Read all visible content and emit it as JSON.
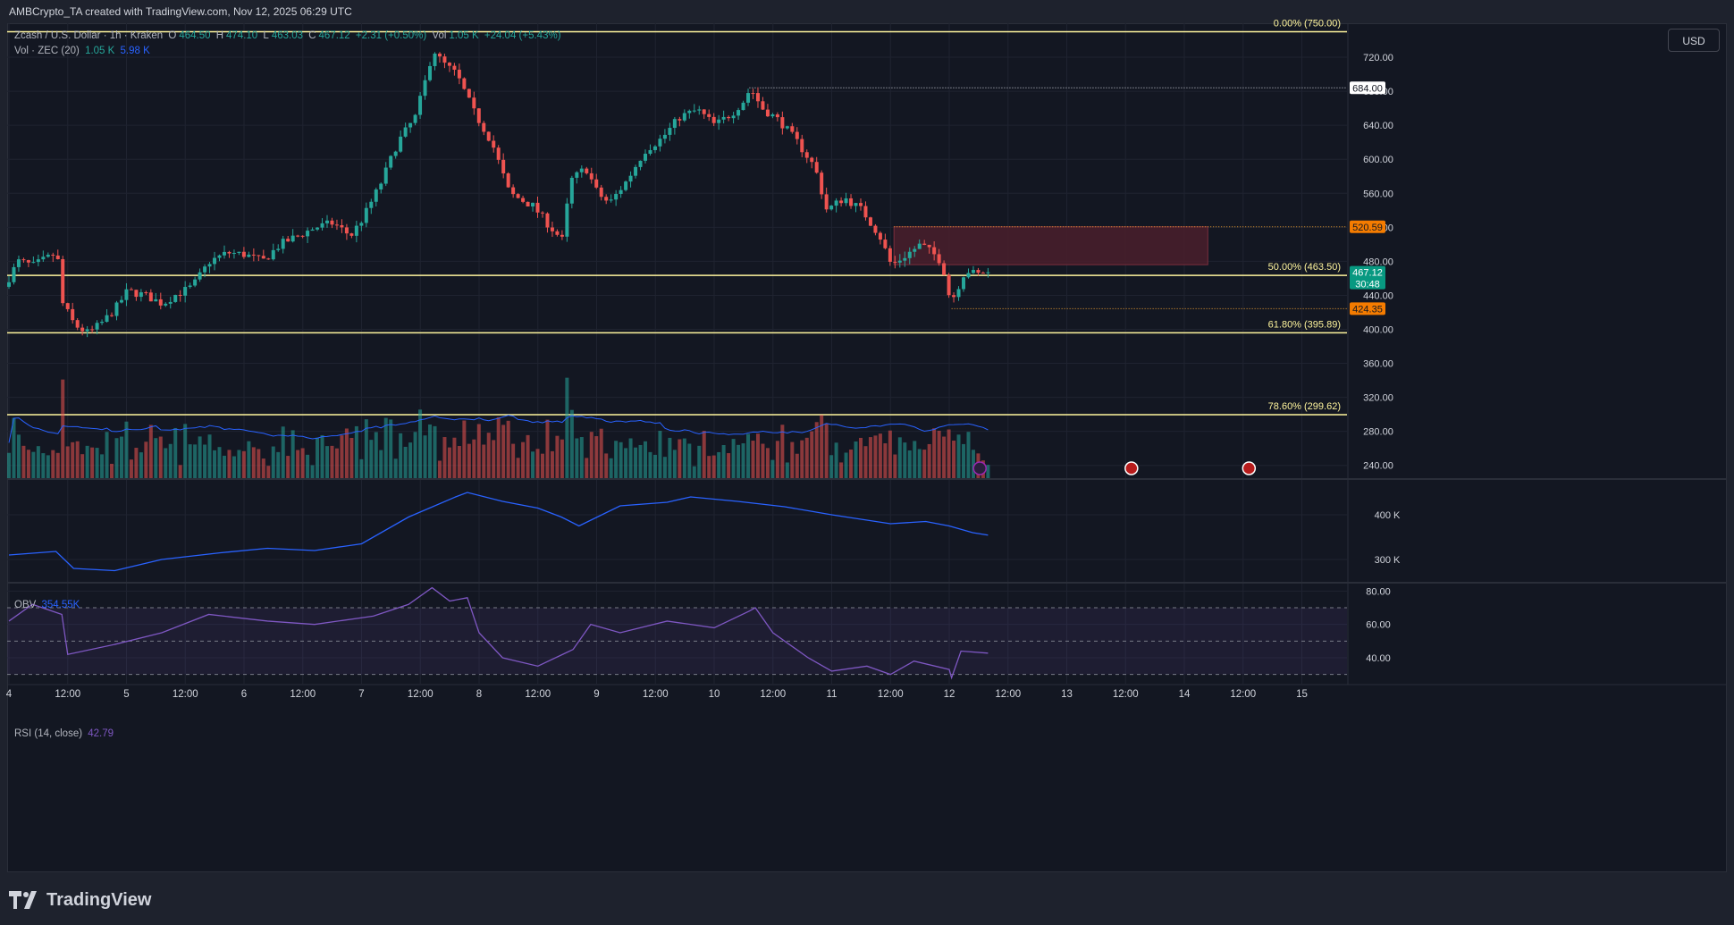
{
  "header": {
    "caption": "AMBCrypto_TA created with TradingView.com, Nov 12, 2025 06:29 UTC"
  },
  "legend": {
    "symbol": "Zcash / U.S. Dollar · 1h · Kraken",
    "o_label": "O",
    "o": "464.50",
    "h_label": "H",
    "h": "474.10",
    "l_label": "L",
    "l": "463.03",
    "c_label": "C",
    "c": "467.12",
    "change": "+2.31 (+0.50%)",
    "vol_label": "Vol",
    "vol": "1.05 K",
    "vol_change": "+24.04 (+5.43%)",
    "vol_ma_label": "Vol · ZEC (20)",
    "vol_ma_v1": "1.05 K",
    "vol_ma_v2": "5.98 K"
  },
  "currency_button": "USD",
  "obv": {
    "label": "OBV",
    "value": "354.55K"
  },
  "rsi": {
    "label": "RSI (14, close)",
    "value": "42.79"
  },
  "brand": "TradingView",
  "colors": {
    "up": "#26a69a",
    "down": "#ef5350",
    "fib": "#fff59d",
    "obv": "#2962ff",
    "rsi": "#7e57c2",
    "bg": "#131722",
    "grid": "#1f2330",
    "zone": "#4a1f2c"
  },
  "chart_data": [
    {
      "type": "candlestick",
      "title": "Zcash / U.S. Dollar · 1h · Kraken",
      "ylim": [
        225,
        760
      ],
      "y_ticks": [
        240,
        280,
        320,
        360,
        400,
        440,
        480,
        520,
        560,
        600,
        640,
        680,
        720
      ],
      "x_ticks": [
        {
          "label": "4",
          "day": 0
        },
        {
          "label": "12:00",
          "day": 0.5
        },
        {
          "label": "5",
          "day": 1
        },
        {
          "label": "12:00",
          "day": 1.5
        },
        {
          "label": "6",
          "day": 2
        },
        {
          "label": "12:00",
          "day": 2.5
        },
        {
          "label": "7",
          "day": 3
        },
        {
          "label": "12:00",
          "day": 3.5
        },
        {
          "label": "8",
          "day": 4
        },
        {
          "label": "12:00",
          "day": 4.5
        },
        {
          "label": "9",
          "day": 5
        },
        {
          "label": "12:00",
          "day": 5.5
        },
        {
          "label": "10",
          "day": 6
        },
        {
          "label": "12:00",
          "day": 6.5
        },
        {
          "label": "11",
          "day": 7
        },
        {
          "label": "12:00",
          "day": 7.5
        },
        {
          "label": "12",
          "day": 8
        },
        {
          "label": "12:00",
          "day": 8.5
        },
        {
          "label": "13",
          "day": 9
        },
        {
          "label": "12:00",
          "day": 9.5
        },
        {
          "label": "14",
          "day": 10
        },
        {
          "label": "12:00",
          "day": 10.5
        },
        {
          "label": "15",
          "day": 11
        }
      ],
      "price_path": [
        [
          0,
          450
        ],
        [
          0.12,
          480
        ],
        [
          0.25,
          475
        ],
        [
          0.45,
          490
        ],
        [
          0.5,
          430
        ],
        [
          0.6,
          405
        ],
        [
          0.72,
          395
        ],
        [
          0.85,
          410
        ],
        [
          0.95,
          425
        ],
        [
          1.05,
          445
        ],
        [
          1.2,
          440
        ],
        [
          1.35,
          430
        ],
        [
          1.45,
          440
        ],
        [
          1.6,
          450
        ],
        [
          1.75,
          480
        ],
        [
          1.9,
          490
        ],
        [
          2.05,
          488
        ],
        [
          2.2,
          480
        ],
        [
          2.35,
          500
        ],
        [
          2.5,
          510
        ],
        [
          2.65,
          520
        ],
        [
          2.8,
          525
        ],
        [
          2.95,
          510
        ],
        [
          3.05,
          530
        ],
        [
          3.2,
          570
        ],
        [
          3.35,
          620
        ],
        [
          3.5,
          650
        ],
        [
          3.6,
          700
        ],
        [
          3.65,
          730
        ],
        [
          3.72,
          715
        ],
        [
          3.85,
          700
        ],
        [
          4.0,
          655
        ],
        [
          4.15,
          620
        ],
        [
          4.3,
          560
        ],
        [
          4.5,
          545
        ],
        [
          4.65,
          520
        ],
        [
          4.75,
          505
        ],
        [
          4.82,
          575
        ],
        [
          4.95,
          590
        ],
        [
          5.05,
          560
        ],
        [
          5.15,
          548
        ],
        [
          5.3,
          575
        ],
        [
          5.45,
          610
        ],
        [
          5.6,
          625
        ],
        [
          5.75,
          650
        ],
        [
          5.9,
          658
        ],
        [
          6.05,
          640
        ],
        [
          6.2,
          655
        ],
        [
          6.3,
          670
        ],
        [
          6.35,
          684
        ],
        [
          6.45,
          660
        ],
        [
          6.6,
          645
        ],
        [
          6.75,
          620
        ],
        [
          6.9,
          590
        ],
        [
          7.0,
          540
        ],
        [
          7.15,
          555
        ],
        [
          7.3,
          540
        ],
        [
          7.45,
          510
        ],
        [
          7.55,
          475
        ],
        [
          7.7,
          490
        ],
        [
          7.8,
          500
        ],
        [
          7.95,
          484
        ],
        [
          8.02,
          460
        ],
        [
          8.05,
          430
        ],
        [
          8.1,
          445
        ],
        [
          8.18,
          470
        ],
        [
          8.28,
          464
        ],
        [
          8.33,
          467.12
        ]
      ],
      "last_price": 467.12,
      "countdown": "30:48",
      "high_marker": 684.0,
      "resistance_zone": [
        476,
        520.59
      ],
      "zone_days": [
        7.53,
        10.2
      ],
      "support_marker": 424.35,
      "fibonacci": [
        {
          "label": "0.00% (750.00)",
          "value": 750.0
        },
        {
          "label": "50.00% (463.50)",
          "value": 463.5
        },
        {
          "label": "61.80% (395.89)",
          "value": 395.89
        },
        {
          "label": "78.60% (299.62)",
          "value": 299.62
        }
      ],
      "price_labels": [
        {
          "text": "684.00",
          "value": 684.0,
          "style": "white"
        },
        {
          "text": "520.59",
          "value": 520.59,
          "style": "orange"
        },
        {
          "text": "467.12",
          "value": 467.12,
          "style": "green"
        },
        {
          "text": "424.35",
          "value": 424.35,
          "style": "orange"
        }
      ]
    },
    {
      "type": "bar",
      "title": "Vol · ZEC (20)",
      "volume_max_k": 6.8,
      "volume_ma_k": 5.98,
      "volume_latest_k": 1.05
    },
    {
      "type": "line",
      "title": "OBV",
      "unit": "K",
      "ylim": [
        250,
        480
      ],
      "y_ticks": [
        {
          "label": "400 K",
          "value": 400
        },
        {
          "label": "300 K",
          "value": 300
        }
      ],
      "x": [
        0,
        0.4,
        0.55,
        0.9,
        1.3,
        1.8,
        2.2,
        2.6,
        3.0,
        3.4,
        3.8,
        3.9,
        4.2,
        4.5,
        4.7,
        4.85,
        5.2,
        5.6,
        5.8,
        6.2,
        6.6,
        7.0,
        7.5,
        7.8,
        8.0,
        8.2,
        8.33
      ],
      "values": [
        310,
        318,
        280,
        275,
        300,
        315,
        325,
        320,
        335,
        395,
        440,
        450,
        430,
        415,
        395,
        375,
        420,
        428,
        440,
        430,
        418,
        400,
        380,
        385,
        375,
        360,
        354.55
      ]
    },
    {
      "type": "line",
      "title": "RSI (14, close)",
      "ylim": [
        25,
        85
      ],
      "y_ticks": [
        80,
        60,
        40
      ],
      "bands": {
        "upper": 70,
        "middle": 50,
        "lower": 30
      },
      "x": [
        0,
        0.2,
        0.45,
        0.5,
        0.9,
        1.3,
        1.7,
        2.2,
        2.6,
        3.1,
        3.4,
        3.6,
        3.75,
        3.9,
        4.0,
        4.2,
        4.5,
        4.8,
        4.95,
        5.2,
        5.6,
        6.0,
        6.3,
        6.35,
        6.5,
        6.8,
        7.0,
        7.3,
        7.5,
        7.7,
        8.0,
        8.02,
        8.1,
        8.33
      ],
      "values": [
        62,
        72,
        66,
        42,
        48,
        55,
        66,
        62,
        60,
        65,
        72,
        82,
        74,
        76,
        55,
        40,
        35,
        45,
        60,
        55,
        62,
        58,
        68,
        70,
        55,
        40,
        32,
        35,
        30,
        38,
        33,
        28,
        44,
        42.79
      ]
    }
  ]
}
